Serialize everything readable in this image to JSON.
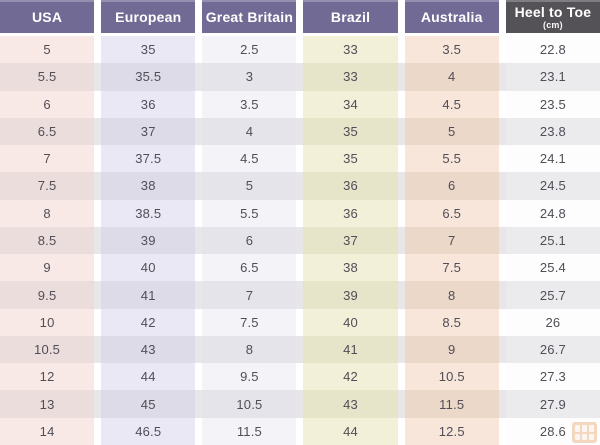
{
  "chart_data": {
    "type": "table",
    "columns": [
      {
        "label": "USA"
      },
      {
        "label": "European"
      },
      {
        "label": "Great Britain"
      },
      {
        "label": "Brazil"
      },
      {
        "label": "Australia"
      },
      {
        "label": "Heel to Toe",
        "sublabel": "(cm)"
      }
    ],
    "rows": [
      [
        "5",
        "35",
        "2.5",
        "33",
        "3.5",
        "22.8"
      ],
      [
        "5.5",
        "35.5",
        "3",
        "33",
        "4",
        "23.1"
      ],
      [
        "6",
        "36",
        "3.5",
        "34",
        "4.5",
        "23.5"
      ],
      [
        "6.5",
        "37",
        "4",
        "35",
        "5",
        "23.8"
      ],
      [
        "7",
        "37.5",
        "4.5",
        "35",
        "5.5",
        "24.1"
      ],
      [
        "7.5",
        "38",
        "5",
        "36",
        "6",
        "24.5"
      ],
      [
        "8",
        "38.5",
        "5.5",
        "36",
        "6.5",
        "24.8"
      ],
      [
        "8.5",
        "39",
        "6",
        "37",
        "7",
        "25.1"
      ],
      [
        "9",
        "40",
        "6.5",
        "38",
        "7.5",
        "25.4"
      ],
      [
        "9.5",
        "41",
        "7",
        "39",
        "8",
        "25.7"
      ],
      [
        "10",
        "42",
        "7.5",
        "40",
        "8.5",
        "26"
      ],
      [
        "10.5",
        "43",
        "8",
        "41",
        "9",
        "26.7"
      ],
      [
        "12",
        "44",
        "9.5",
        "42",
        "10.5",
        "27.3"
      ],
      [
        "13",
        "45",
        "10.5",
        "43",
        "11.5",
        "27.9"
      ],
      [
        "14",
        "46.5",
        "11.5",
        "44",
        "12.5",
        "28.6"
      ]
    ]
  },
  "colors": {
    "header_bg": "#716a94",
    "header_text": "#ffffff",
    "heel_header_bg": "#555257",
    "body_text": "#514e57",
    "row_odd_gap": "#ffffff",
    "row_even_gap": "#e8e6e8",
    "columns_odd": [
      "#f9e9e6",
      "#e9e8f4",
      "#f4f3f8",
      "#f2f0d9",
      "#f7e6d9",
      "#fdfdfd"
    ],
    "columns_even": [
      "#ecdddd",
      "#dcdbe7",
      "#e5e4eb",
      "#e6e4c9",
      "#ebd8c9",
      "#ebeaed"
    ]
  },
  "watermark": {
    "name": "orange-grid-logo",
    "color": "#e59a5d"
  }
}
